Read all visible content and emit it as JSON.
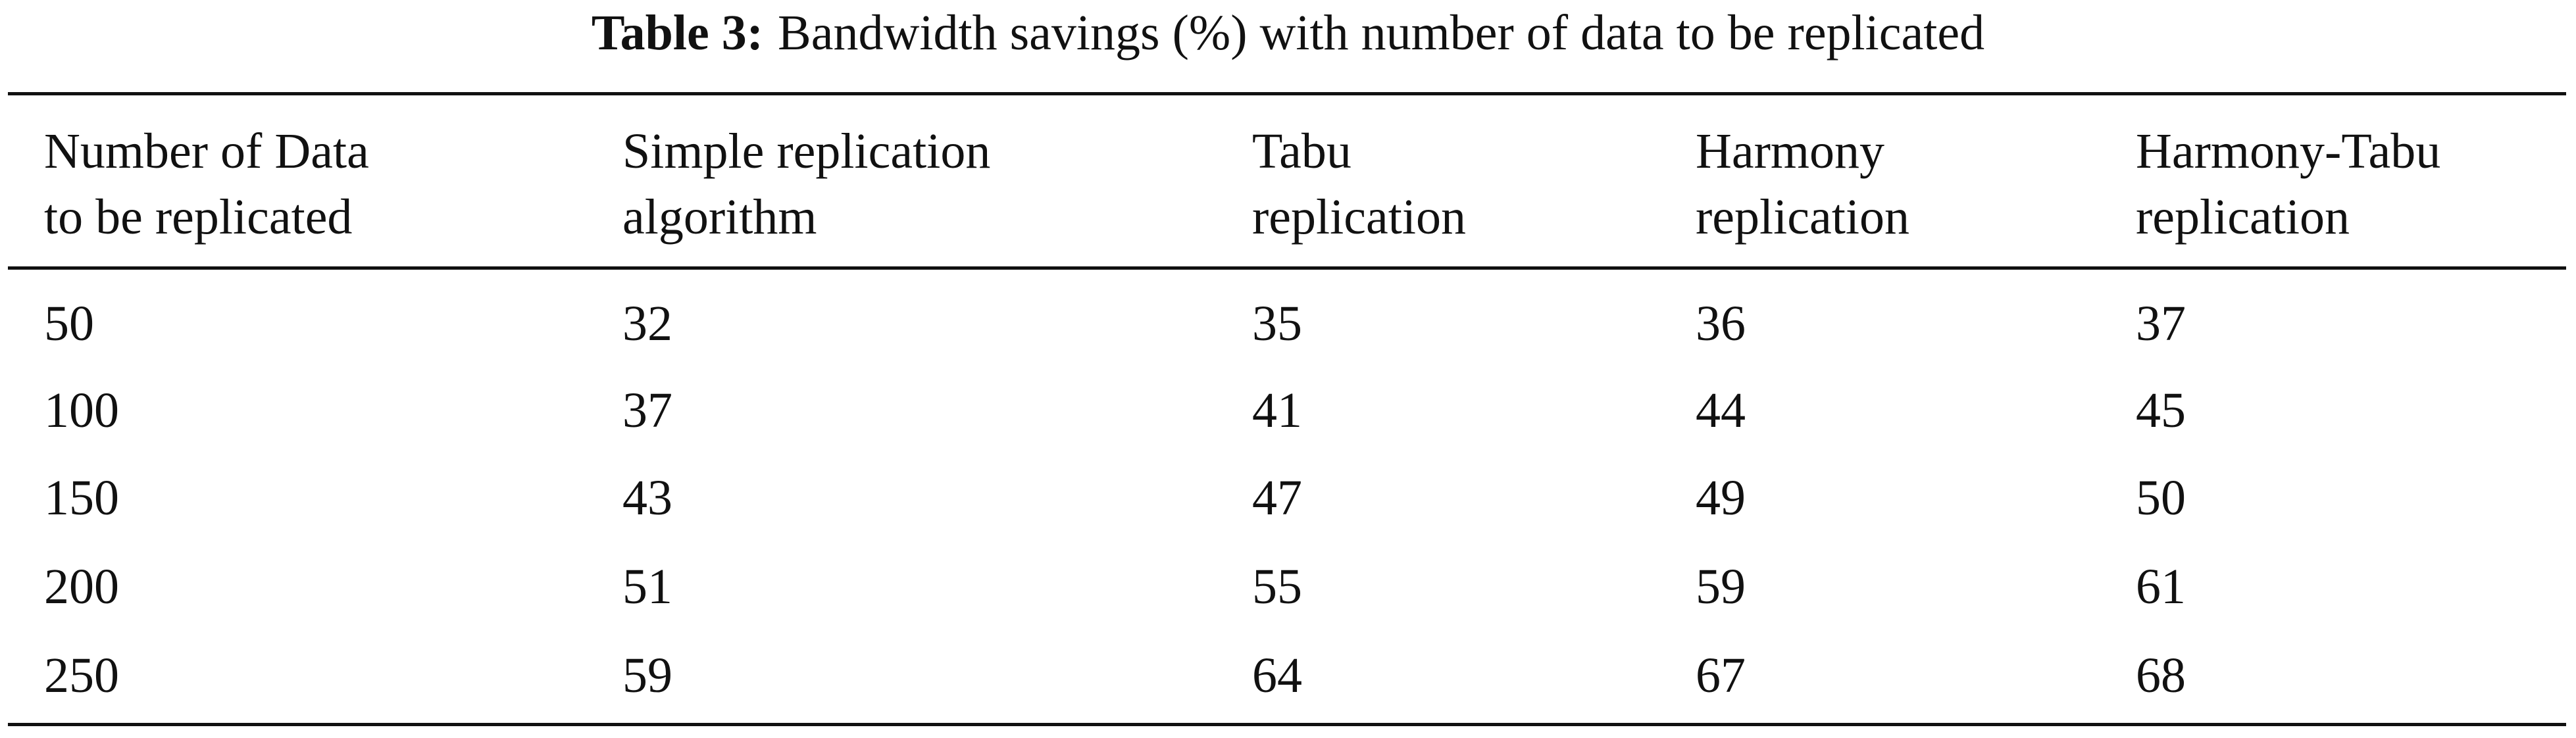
{
  "caption": {
    "label": "Table 3:",
    "text": "Bandwidth savings (%) with number of data to be replicated"
  },
  "table": {
    "header": [
      [
        "Number of Data",
        "to be replicated"
      ],
      [
        "Simple replication",
        "algorithm"
      ],
      [
        "Tabu",
        "replication"
      ],
      [
        "Harmony",
        "replication"
      ],
      [
        "Harmony-Tabu",
        "replication"
      ]
    ],
    "rows": [
      [
        50,
        32,
        35,
        36,
        37
      ],
      [
        100,
        37,
        41,
        44,
        45
      ],
      [
        150,
        43,
        47,
        49,
        50
      ],
      [
        200,
        51,
        55,
        59,
        61
      ],
      [
        250,
        59,
        64,
        67,
        68
      ]
    ]
  }
}
